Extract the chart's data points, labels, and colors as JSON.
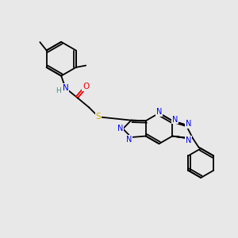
{
  "background_color": "#e8e8e8",
  "bond_color": "#000000",
  "atom_colors": {
    "N": "#0000ee",
    "O": "#ee0000",
    "S": "#ccaa00",
    "H": "#4a8a8a",
    "C": "#000000"
  },
  "figsize": [
    3.0,
    3.0
  ],
  "dpi": 100,
  "lw": 1.3,
  "fs": 7.0
}
